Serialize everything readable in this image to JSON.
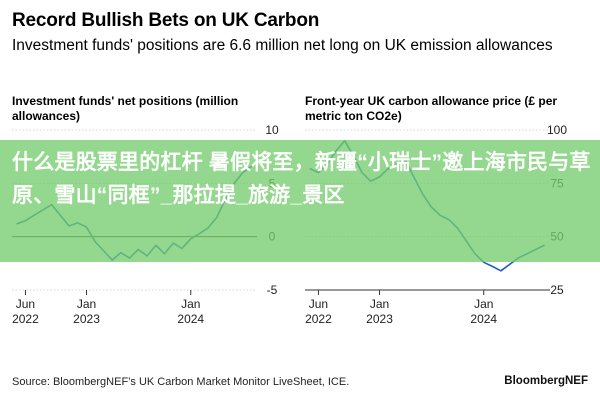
{
  "title": "Record Bullish Bets on UK Carbon",
  "subtitle": "Investment funds' positions are 6.6 million net long on UK emission allowances",
  "source": "Source: BloombergNEF’s UK Carbon Market Monitor LiveSheet, ICE.",
  "brand": "BloombergNEF",
  "overlay_text": "什么是股票里的杠杆 暑假将至，新疆“小瑞士”邀上海市民与草原、雪山“同框”_那拉提_旅游_景区",
  "chart_data": [
    {
      "type": "line",
      "title": "Investment funds' net positions (million allowances)",
      "color": "#1f5fb8",
      "ylim": [
        -5,
        10
      ],
      "yticks": [
        10,
        5,
        0,
        -5
      ],
      "xtick_labels": [
        {
          "date": "2022-06-01",
          "label": [
            "Jun",
            "2022"
          ]
        },
        {
          "date": "2023-01-01",
          "label": [
            "Jan",
            "2023"
          ]
        },
        {
          "date": "2024-01-01",
          "label": [
            "Jan",
            "2024"
          ]
        }
      ],
      "series": [
        {
          "x": [
            "2022-05-01",
            "2022-06-01",
            "2022-07-01",
            "2022-08-01",
            "2022-09-01",
            "2022-10-01",
            "2022-11-01",
            "2022-12-01",
            "2023-01-01",
            "2023-02-01",
            "2023-03-01",
            "2023-04-01",
            "2023-05-01",
            "2023-06-01",
            "2023-07-01",
            "2023-08-01",
            "2023-09-01",
            "2023-10-01",
            "2023-11-01",
            "2023-12-01",
            "2024-01-01",
            "2024-02-01",
            "2024-03-01",
            "2024-04-01",
            "2024-05-01",
            "2024-06-01",
            "2024-07-01",
            "2024-08-01"
          ],
          "y": [
            1.2,
            1.5,
            2.0,
            2.5,
            3.0,
            2.0,
            1.0,
            1.3,
            0.9,
            -0.5,
            -1.3,
            -2.2,
            -1.5,
            -2.0,
            -1.2,
            -1.8,
            -0.8,
            -1.6,
            -0.6,
            -1.1,
            -0.2,
            0.3,
            0.8,
            1.8,
            3.5,
            5.0,
            6.0,
            6.6
          ]
        }
      ]
    },
    {
      "type": "line",
      "title": "Front-year UK carbon allowance price (£ per metric ton CO2e)",
      "color": "#1f5fb8",
      "ylim": [
        25,
        100
      ],
      "yticks": [
        100,
        75,
        50,
        25
      ],
      "xtick_labels": [
        {
          "date": "2022-06-01",
          "label": [
            "Jun",
            "2022"
          ]
        },
        {
          "date": "2023-01-01",
          "label": [
            "Jan",
            "2023"
          ]
        },
        {
          "date": "2024-01-01",
          "label": [
            "Jan",
            "2024"
          ]
        }
      ],
      "series": [
        {
          "x": [
            "2022-05-01",
            "2022-06-01",
            "2022-07-01",
            "2022-08-01",
            "2022-09-01",
            "2022-10-01",
            "2022-11-01",
            "2022-12-01",
            "2023-01-01",
            "2023-02-01",
            "2023-03-01",
            "2023-04-01",
            "2023-05-01",
            "2023-06-01",
            "2023-07-01",
            "2023-08-01",
            "2023-09-01",
            "2023-10-01",
            "2023-11-01",
            "2023-12-01",
            "2024-01-01",
            "2024-02-01",
            "2024-03-01",
            "2024-04-01",
            "2024-05-01",
            "2024-06-01",
            "2024-07-01",
            "2024-08-01"
          ],
          "y": [
            82,
            80,
            84,
            90,
            95,
            88,
            80,
            76,
            78,
            82,
            84,
            86,
            78,
            70,
            64,
            60,
            58,
            54,
            48,
            42,
            38,
            36,
            34,
            37,
            40,
            42,
            44,
            46
          ]
        }
      ]
    }
  ]
}
